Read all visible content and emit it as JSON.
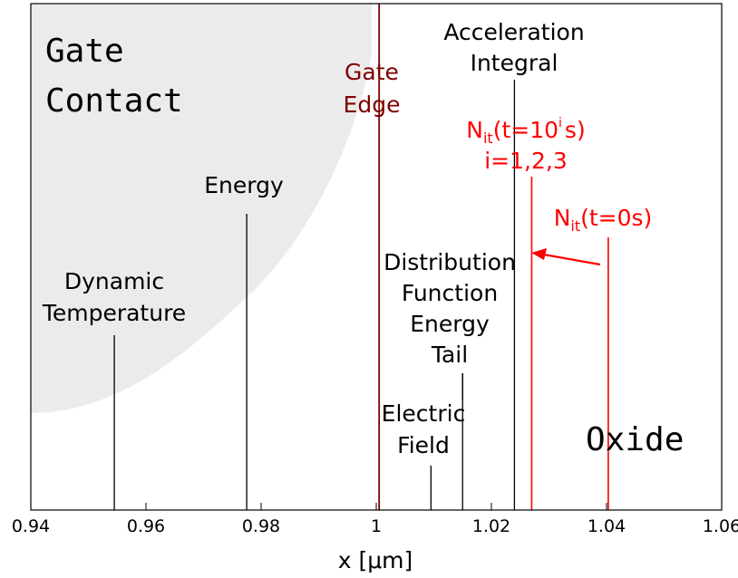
{
  "chart_data": {
    "type": "diagram",
    "xlabel": "x [μm]",
    "xlim": [
      0.94,
      1.06
    ],
    "x_ticks": [
      {
        "value": 0.94,
        "label": "0.94"
      },
      {
        "value": 0.96,
        "label": "0.96"
      },
      {
        "value": 0.98,
        "label": "0.98"
      },
      {
        "value": 1.0,
        "label": "1"
      },
      {
        "value": 1.02,
        "label": "1.02"
      },
      {
        "value": 1.04,
        "label": "1.04"
      },
      {
        "value": 1.06,
        "label": "1.06"
      }
    ],
    "region_labels": {
      "gate_contact": [
        "Gate",
        "Contact"
      ],
      "oxide": "Oxide"
    },
    "markers": [
      {
        "id": "dynamic-temperature",
        "x": 0.9545,
        "lines": [
          "Dynamic",
          "Temperature"
        ],
        "color": "#000000"
      },
      {
        "id": "energy",
        "x": 0.9775,
        "lines": [
          "Energy"
        ],
        "color": "#000000"
      },
      {
        "id": "gate-edge",
        "x": 1.0005,
        "lines": [
          "Gate",
          "Edge"
        ],
        "color": "#800000"
      },
      {
        "id": "electric-field",
        "x": 1.0095,
        "lines": [
          "Electric",
          "Field"
        ],
        "color": "#000000"
      },
      {
        "id": "distribution-function-energy-tail",
        "x": 1.015,
        "lines": [
          "Distribution",
          "Function",
          "Energy",
          "Tail"
        ],
        "color": "#000000"
      },
      {
        "id": "acceleration-integral",
        "x": 1.024,
        "lines": [
          "Acceleration",
          "Integral"
        ],
        "color": "#000000"
      },
      {
        "id": "nit-t-i",
        "x": 1.027,
        "label": {
          "base": "N",
          "sub": "it",
          "mid": "(t=10",
          "sup": "i",
          "end": "s)"
        },
        "line2": "i=1,2,3",
        "color": "#ff0000"
      },
      {
        "id": "nit-t-0",
        "x": 1.0403,
        "label": {
          "base": "N",
          "sub": "it",
          "end": "(t=0s)"
        },
        "color": "#ff0000"
      }
    ],
    "arrow": {
      "from": "nit-t-0",
      "to": "nit-t-i",
      "color": "#ff0000"
    },
    "colors": {
      "gate_region": "#ebebeb",
      "highlight": "#ff0000",
      "gate_edge": "#800000"
    }
  }
}
